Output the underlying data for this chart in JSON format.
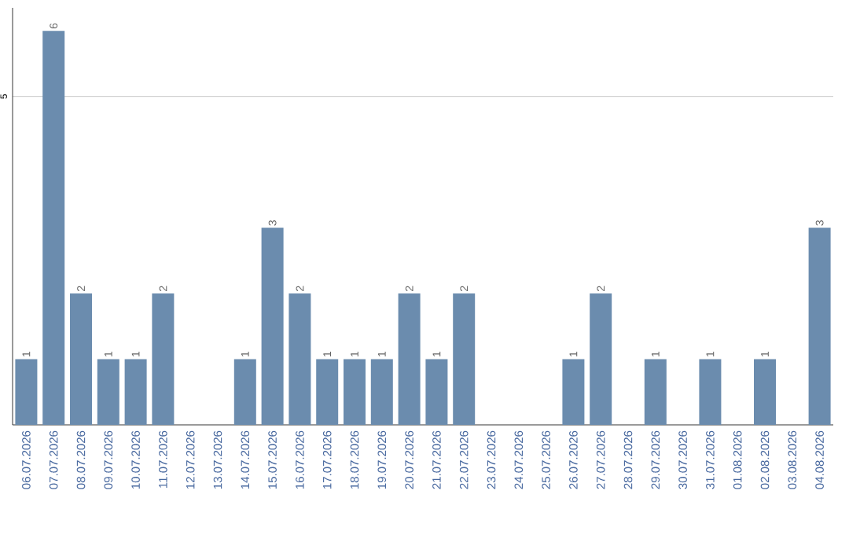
{
  "chart_data": {
    "type": "bar",
    "categories": [
      "06.07.2026",
      "07.07.2026",
      "08.07.2026",
      "09.07.2026",
      "10.07.2026",
      "11.07.2026",
      "12.07.2026",
      "13.07.2026",
      "14.07.2026",
      "15.07.2026",
      "16.07.2026",
      "17.07.2026",
      "18.07.2026",
      "19.07.2026",
      "20.07.2026",
      "21.07.2026",
      "22.07.2026",
      "23.07.2026",
      "24.07.2026",
      "25.07.2026",
      "26.07.2026",
      "27.07.2026",
      "28.07.2026",
      "29.07.2026",
      "30.07.2026",
      "31.07.2026",
      "01.08.2026",
      "02.08.2026",
      "03.08.2026",
      "04.08.2026"
    ],
    "values": [
      1,
      6,
      2,
      1,
      1,
      2,
      0,
      0,
      1,
      3,
      2,
      1,
      1,
      1,
      2,
      1,
      2,
      0,
      0,
      0,
      1,
      2,
      0,
      1,
      0,
      1,
      0,
      1,
      0,
      3
    ],
    "value_labels": [
      "1",
      "6",
      "2",
      "1",
      "1",
      "2",
      null,
      null,
      "1",
      "3",
      "2",
      "1",
      "1",
      "1",
      "2",
      "1",
      "2",
      null,
      null,
      null,
      "1",
      "2",
      null,
      "1",
      null,
      "1",
      null,
      "1",
      null,
      "3"
    ],
    "color": "#6b8cae",
    "ylim": [
      0,
      6.35
    ],
    "yticks": [
      5
    ],
    "grid": "y"
  }
}
